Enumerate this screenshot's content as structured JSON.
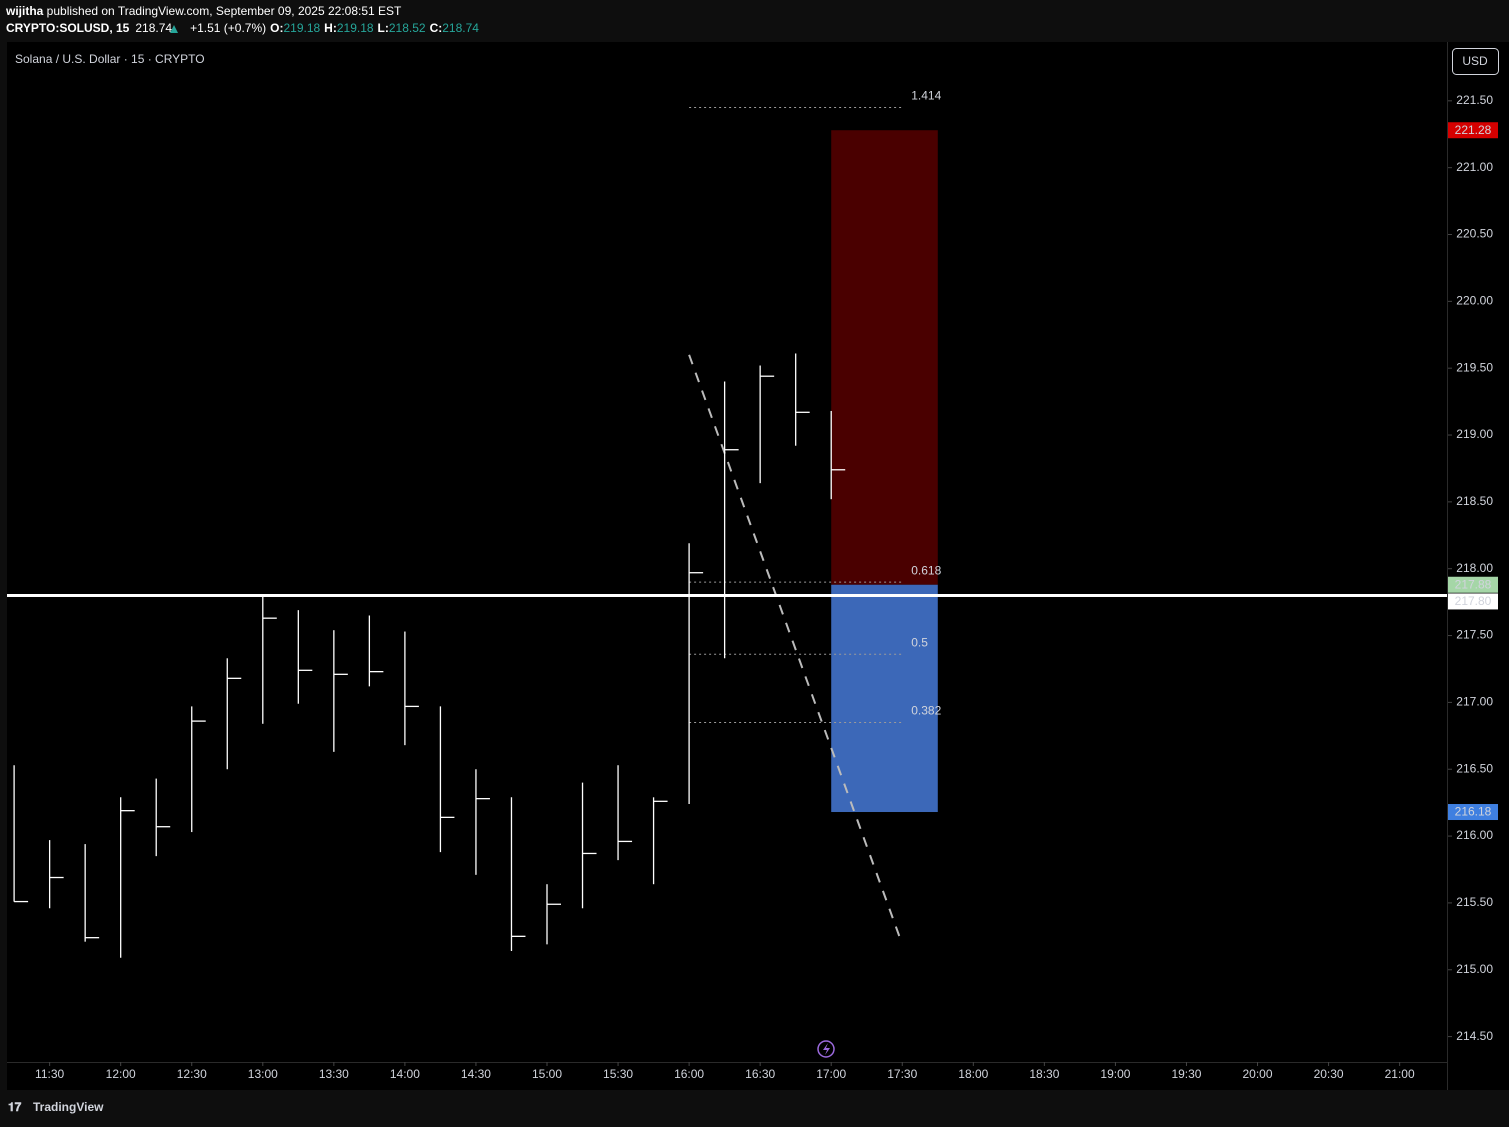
{
  "header": {
    "user": "wijitha",
    "published": " published on TradingView.com, September 09, 2025 22:08:51 EST",
    "symbol": "CRYPTO:SOLUSD, 15",
    "change": "+1.51 (+0.7%)",
    "ohlc_labels": [
      "O:",
      "H:",
      "L:",
      "C:"
    ],
    "open": 219.18
  },
  "chart_data": {
    "type": "hlc",
    "title": "Solana / U.S. Dollar · 15 · CRYPTO",
    "currency": "USD",
    "color": "#ffffff",
    "x": [
      "11:15",
      "11:30",
      "11:45",
      "12:00",
      "12:15",
      "12:30",
      "12:45",
      "13:00",
      "13:15",
      "13:30",
      "13:45",
      "14:00",
      "14:15",
      "14:30",
      "14:45",
      "15:00",
      "15:15",
      "15:30",
      "15:45",
      "16:00",
      "16:15",
      "16:30",
      "16:45",
      "17:00"
    ],
    "high": [
      216.53,
      215.97,
      215.94,
      216.29,
      216.43,
      216.97,
      217.33,
      217.79,
      217.69,
      217.54,
      217.65,
      217.53,
      216.97,
      216.5,
      216.29,
      215.64,
      216.4,
      216.53,
      216.29,
      218.19,
      219.4,
      219.52,
      219.61,
      219.18
    ],
    "low": [
      215.51,
      215.46,
      215.21,
      215.09,
      215.85,
      216.03,
      216.5,
      216.84,
      216.99,
      216.63,
      217.12,
      216.68,
      215.88,
      215.71,
      215.14,
      215.19,
      215.46,
      215.82,
      215.64,
      216.24,
      217.33,
      218.64,
      218.92,
      218.52
    ],
    "close": [
      215.51,
      215.69,
      215.24,
      216.19,
      216.07,
      216.86,
      217.18,
      217.63,
      217.24,
      217.21,
      217.23,
      216.97,
      216.14,
      216.28,
      215.25,
      215.49,
      215.87,
      215.96,
      216.26,
      217.97,
      218.89,
      219.44,
      219.17,
      218.74
    ],
    "xlim": [
      "11:12",
      "21:20"
    ],
    "xticks": [
      "11:30",
      "12:00",
      "12:30",
      "13:00",
      "13:30",
      "14:00",
      "14:30",
      "15:00",
      "15:30",
      "16:00",
      "16:30",
      "17:00",
      "17:30",
      "18:00",
      "18:30",
      "19:00",
      "19:30",
      "20:00",
      "20:30",
      "21:00"
    ],
    "ylim": [
      214.31,
      221.94
    ],
    "yticks": [
      {
        "value": 221.5,
        "label": "221.50"
      },
      {
        "value": 221,
        "label": "221.00"
      },
      {
        "value": 220.5,
        "label": "220.50"
      },
      {
        "value": 220,
        "label": "220.00"
      },
      {
        "value": 219.5,
        "label": "219.50"
      },
      {
        "value": 219,
        "label": "219.00"
      },
      {
        "value": 218.5,
        "label": "218.50"
      },
      {
        "value": 218,
        "label": "218.00"
      },
      {
        "value": 217.5,
        "label": "217.50"
      },
      {
        "value": 217,
        "label": "217.00"
      },
      {
        "value": 216.5,
        "label": "216.50"
      },
      {
        "value": 216,
        "label": "216.00"
      },
      {
        "value": 215.5,
        "label": "215.50"
      },
      {
        "value": 215,
        "label": "215.00"
      },
      {
        "value": 214.5,
        "label": "214.50"
      }
    ],
    "hline": {
      "value": 217.8,
      "label": "217.80",
      "color": "#ffffff"
    },
    "position": {
      "entry": 217.88,
      "stop": 221.28,
      "target": 216.18,
      "start": "17:00",
      "end": "17:45",
      "stop_color": "#4a0000",
      "target_color": "#3c68b8",
      "stop_badge": "#d50000",
      "entry_badge": "#a5d6a7",
      "target_badge": "#3f7fe0"
    },
    "fib": {
      "start": "16:00",
      "end": "17:30",
      "levels": [
        {
          "ratio": 1.414,
          "price": 221.45,
          "color": "#9a9a9a"
        },
        {
          "ratio": 0.618,
          "price": 217.9,
          "color": "#c47a7a"
        },
        {
          "ratio": 0.5,
          "price": 217.36,
          "color": "#5a78b0"
        },
        {
          "ratio": 0.382,
          "price": 216.85,
          "color": "#5a78b0"
        }
      ]
    },
    "trendline": [
      {
        "x": "16:00",
        "y": 219.6
      },
      {
        "x": "17:30",
        "y": 215.19
      }
    ]
  },
  "footer": {
    "brand": "TradingView"
  }
}
